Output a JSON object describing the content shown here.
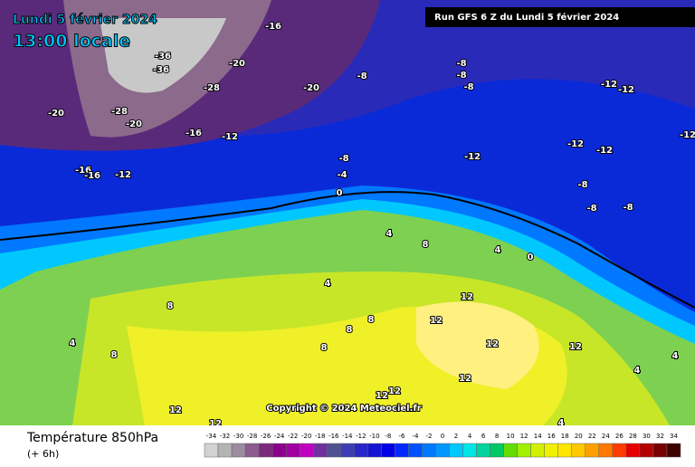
{
  "header": {
    "date": "Lundi 5 février 2024",
    "time": "13:00 locale",
    "run": "Run GFS 6 Z du Lundi 5 février 2024"
  },
  "copyright": "Copyright © 2024 Meteociel.fr",
  "footer": {
    "title": "Température 850hPa",
    "subtitle": "(+ 6h)"
  },
  "scale": {
    "ticks": [
      -34,
      -32,
      -30,
      -28,
      -26,
      -24,
      -22,
      -20,
      -18,
      -16,
      -14,
      -12,
      -10,
      -8,
      -6,
      -4,
      -2,
      0,
      2,
      4,
      6,
      8,
      10,
      12,
      14,
      16,
      18,
      20,
      22,
      24,
      26,
      28,
      30,
      32,
      34
    ],
    "colors": [
      "#d2d2d2",
      "#b4b4b4",
      "#9c8ca0",
      "#8c5a8c",
      "#7a2a7a",
      "#8b008b",
      "#a000a0",
      "#c000c0",
      "#7030a0",
      "#505090",
      "#3c3cb4",
      "#2828c8",
      "#1414d2",
      "#0000e6",
      "#0028ff",
      "#0050ff",
      "#0078ff",
      "#0096ff",
      "#00c8ff",
      "#00e6e6",
      "#00d2a0",
      "#00c864",
      "#64dc00",
      "#a0f000",
      "#d2f000",
      "#f0f000",
      "#ffe600",
      "#ffc800",
      "#ffa000",
      "#ff7800",
      "#ff3c00",
      "#e60000",
      "#b40000",
      "#780000",
      "#3c0000"
    ]
  },
  "map_labels": [
    -16,
    -36,
    -36,
    -20,
    -28,
    -20,
    -8,
    -20,
    -28,
    -20,
    -16,
    -12,
    -16,
    -16,
    -12,
    -8,
    -8,
    -8,
    -12,
    -12,
    -12,
    -12,
    -12,
    -12,
    -8,
    -4,
    0,
    -8,
    -8,
    -8,
    4,
    8,
    4,
    0,
    4,
    8,
    4,
    8,
    8,
    8,
    8,
    12,
    12,
    12,
    12,
    12,
    4,
    4,
    12,
    12,
    4,
    12,
    12
  ]
}
